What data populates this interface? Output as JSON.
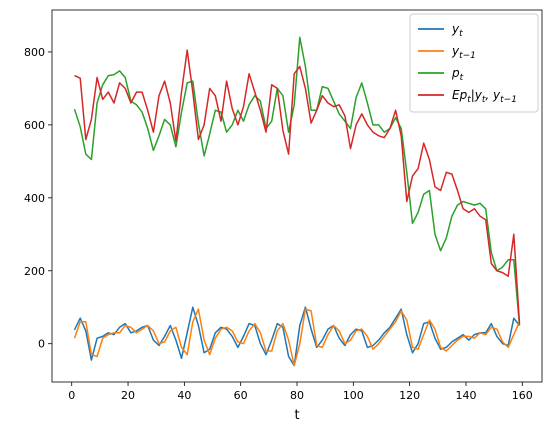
{
  "chart_data": {
    "type": "line",
    "xlabel": "t",
    "ylabel": "",
    "xlim": [
      -7,
      167
    ],
    "ylim": [
      -105,
      915
    ],
    "xticks": [
      0,
      20,
      40,
      60,
      80,
      100,
      120,
      140,
      160
    ],
    "yticks": [
      0,
      200,
      400,
      600,
      800
    ],
    "grid": false,
    "legend_position": "top-right",
    "series": [
      {
        "name": "y_t",
        "legend_math": {
          "base": "y",
          "sub": "t"
        },
        "color": "#1f77b4",
        "x": [
          1,
          3,
          5,
          7,
          9,
          11,
          13,
          15,
          17,
          19,
          21,
          23,
          25,
          27,
          29,
          31,
          33,
          35,
          37,
          39,
          41,
          43,
          45,
          47,
          49,
          51,
          53,
          55,
          57,
          59,
          61,
          63,
          65,
          67,
          69,
          71,
          73,
          75,
          77,
          79,
          81,
          83,
          85,
          87,
          89,
          91,
          93,
          95,
          97,
          99,
          101,
          103,
          105,
          107,
          109,
          111,
          113,
          115,
          117,
          119,
          121,
          123,
          125,
          127,
          129,
          131,
          133,
          135,
          137,
          139,
          141,
          143,
          145,
          147,
          149,
          151,
          153,
          155,
          157,
          159
        ],
        "values": [
          38,
          70,
          35,
          -45,
          15,
          20,
          30,
          25,
          45,
          55,
          30,
          35,
          45,
          50,
          10,
          -5,
          20,
          50,
          10,
          -40,
          30,
          100,
          50,
          -25,
          -15,
          30,
          45,
          40,
          20,
          -10,
          20,
          55,
          50,
          0,
          -30,
          10,
          55,
          45,
          -35,
          -60,
          50,
          100,
          40,
          -10,
          10,
          40,
          50,
          15,
          -5,
          25,
          40,
          35,
          -10,
          -5,
          10,
          30,
          45,
          70,
          95,
          25,
          -25,
          0,
          55,
          60,
          15,
          -15,
          -10,
          5,
          15,
          25,
          10,
          25,
          30,
          30,
          55,
          20,
          0,
          -5,
          70,
          50
        ]
      },
      {
        "name": "y_{t-1}",
        "legend_math": {
          "base": "y",
          "sub": "t−1"
        },
        "color": "#ff7f0e",
        "x": [
          1,
          3,
          5,
          7,
          9,
          11,
          13,
          15,
          17,
          19,
          21,
          23,
          25,
          27,
          29,
          31,
          33,
          35,
          37,
          39,
          41,
          43,
          45,
          47,
          49,
          51,
          53,
          55,
          57,
          59,
          61,
          63,
          65,
          67,
          69,
          71,
          73,
          75,
          77,
          79,
          81,
          83,
          85,
          87,
          89,
          91,
          93,
          95,
          97,
          99,
          101,
          103,
          105,
          107,
          109,
          111,
          113,
          115,
          117,
          119,
          121,
          123,
          125,
          127,
          129,
          131,
          133,
          135,
          137,
          139,
          141,
          143,
          145,
          147,
          149,
          151,
          153,
          155,
          157,
          159
        ],
        "values": [
          15,
          60,
          60,
          -30,
          -35,
          15,
          25,
          30,
          30,
          50,
          45,
          30,
          40,
          50,
          35,
          0,
          5,
          35,
          45,
          -10,
          -30,
          60,
          95,
          10,
          -30,
          15,
          40,
          45,
          35,
          5,
          0,
          35,
          55,
          30,
          -20,
          -20,
          35,
          55,
          10,
          -60,
          0,
          95,
          90,
          -5,
          -10,
          25,
          50,
          35,
          0,
          10,
          35,
          40,
          20,
          -15,
          0,
          20,
          40,
          60,
          90,
          65,
          -10,
          -15,
          25,
          65,
          40,
          -10,
          -20,
          -5,
          10,
          20,
          20,
          15,
          30,
          25,
          45,
          40,
          5,
          -10,
          25,
          60
        ]
      },
      {
        "name": "p_t",
        "legend_math": {
          "base": "p",
          "sub": "t"
        },
        "color": "#2ca02c",
        "x": [
          1,
          3,
          5,
          7,
          9,
          11,
          13,
          15,
          17,
          19,
          21,
          23,
          25,
          27,
          29,
          31,
          33,
          35,
          37,
          39,
          41,
          43,
          45,
          47,
          49,
          51,
          53,
          55,
          57,
          59,
          61,
          63,
          65,
          67,
          69,
          71,
          73,
          75,
          77,
          79,
          81,
          83,
          85,
          87,
          89,
          91,
          93,
          95,
          97,
          99,
          101,
          103,
          105,
          107,
          109,
          111,
          113,
          115,
          117,
          119,
          121,
          123,
          125,
          127,
          129,
          131,
          133,
          135,
          137,
          139,
          141,
          143,
          145,
          147,
          149,
          151,
          153,
          155,
          157,
          159
        ],
        "values": [
          643,
          595,
          520,
          505,
          660,
          710,
          735,
          738,
          748,
          730,
          665,
          655,
          635,
          590,
          530,
          570,
          615,
          600,
          540,
          635,
          715,
          720,
          605,
          515,
          575,
          640,
          635,
          580,
          600,
          640,
          610,
          655,
          680,
          665,
          590,
          610,
          700,
          680,
          580,
          655,
          840,
          760,
          640,
          640,
          705,
          700,
          665,
          630,
          610,
          590,
          675,
          715,
          660,
          600,
          600,
          580,
          590,
          620,
          590,
          470,
          330,
          360,
          410,
          420,
          300,
          255,
          290,
          350,
          380,
          390,
          385,
          380,
          385,
          370,
          250,
          200,
          210,
          230,
          230,
          50
        ]
      },
      {
        "name": "Ep_t|y_t, y_{t-1}",
        "legend_math": {
          "base": "Ep",
          "sub": "t",
          "rest": "|y",
          "sub2": "t",
          "rest2": ", y",
          "sub3": "t−1"
        },
        "color": "#d62728",
        "x": [
          1,
          3,
          5,
          7,
          9,
          11,
          13,
          15,
          17,
          19,
          21,
          23,
          25,
          27,
          29,
          31,
          33,
          35,
          37,
          39,
          41,
          43,
          45,
          47,
          49,
          51,
          53,
          55,
          57,
          59,
          61,
          63,
          65,
          67,
          69,
          71,
          73,
          75,
          77,
          79,
          81,
          83,
          85,
          87,
          89,
          91,
          93,
          95,
          97,
          99,
          101,
          103,
          105,
          107,
          109,
          111,
          113,
          115,
          117,
          119,
          121,
          123,
          125,
          127,
          129,
          131,
          133,
          135,
          137,
          139,
          141,
          143,
          145,
          147,
          149,
          151,
          153,
          155,
          157,
          159
        ],
        "values": [
          735,
          728,
          560,
          615,
          730,
          670,
          690,
          660,
          715,
          700,
          660,
          690,
          690,
          640,
          580,
          680,
          720,
          660,
          555,
          690,
          805,
          690,
          560,
          600,
          700,
          680,
          610,
          720,
          645,
          600,
          650,
          740,
          690,
          640,
          580,
          710,
          700,
          585,
          520,
          740,
          760,
          700,
          605,
          640,
          680,
          660,
          650,
          655,
          625,
          535,
          600,
          630,
          600,
          580,
          570,
          565,
          590,
          640,
          570,
          390,
          460,
          480,
          550,
          505,
          430,
          420,
          470,
          465,
          420,
          370,
          360,
          370,
          350,
          340,
          220,
          200,
          195,
          185,
          300,
          55
        ]
      }
    ]
  }
}
